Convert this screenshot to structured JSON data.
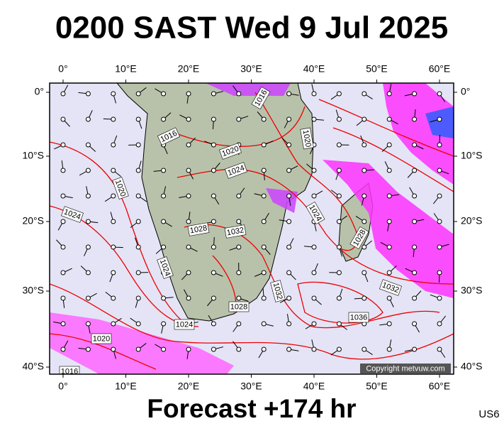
{
  "title": "0200 SAST Wed 9 Jul 2025",
  "footer": "Forecast +174 hr",
  "model_code": "US6",
  "copyright": "Copyright metvuw.com",
  "longitude_labels": [
    "0°",
    "10°E",
    "20°E",
    "30°E",
    "40°E",
    "50°E",
    "60°E"
  ],
  "latitude_labels": [
    "0°",
    "10°S",
    "20°S",
    "30°S",
    "40°S"
  ],
  "isobar_labels": [
    "1016",
    "1016",
    "1020",
    "1020",
    "1024",
    "1020",
    "1024",
    "1028",
    "1032",
    "1024",
    "1028",
    "1024",
    "1032",
    "1028",
    "1036",
    "1032",
    "1024",
    "1020",
    "1016"
  ]
}
